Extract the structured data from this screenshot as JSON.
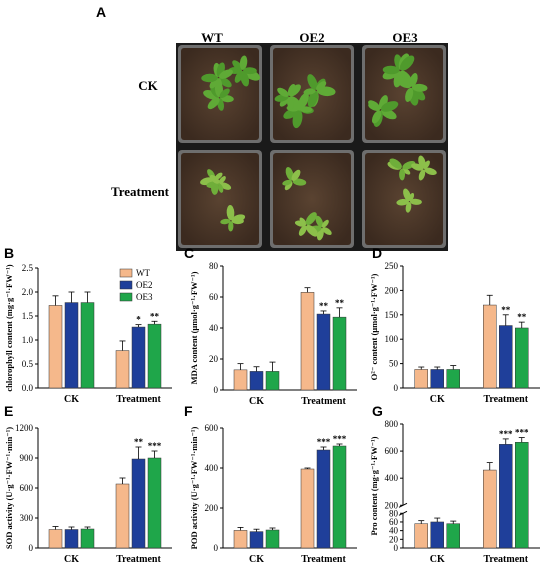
{
  "panel_a": {
    "letter": "A",
    "columns": [
      "WT",
      "OE2",
      "OE3"
    ],
    "rows": [
      "CK",
      "Treatment"
    ]
  },
  "legend": [
    "WT",
    "OE2",
    "OE3"
  ],
  "colors": {
    "WT": "#F5B88B",
    "OE2": "#1F3F9A",
    "OE3": "#1FA64A",
    "soil": "#4a3628",
    "plant": "#4f9a2c",
    "tray": "#1a1a1a"
  },
  "chart_data": [
    {
      "id": "B",
      "letter": "B",
      "type": "bar",
      "ylabel": "chlorophyll content (mg·g⁻¹·FW⁻¹)",
      "categories": [
        "CK",
        "Treatment"
      ],
      "ylim": [
        0,
        2.5
      ],
      "yticks": [
        "0.0",
        "0.5",
        "1.0",
        "1.5",
        "2.0",
        "2.5"
      ],
      "ytick_values": [
        0,
        0.5,
        1.0,
        1.5,
        2.0,
        2.5
      ],
      "series": [
        {
          "name": "WT",
          "values": [
            1.72,
            0.78
          ],
          "errors": [
            0.2,
            0.2
          ]
        },
        {
          "name": "OE2",
          "values": [
            1.78,
            1.27
          ],
          "errors": [
            0.22,
            0.05
          ]
        },
        {
          "name": "OE3",
          "values": [
            1.78,
            1.33
          ],
          "errors": [
            0.22,
            0.06
          ]
        }
      ],
      "annotations": [
        [
          "",
          ""
        ],
        [
          "",
          "*"
        ],
        [
          "",
          "**"
        ]
      ],
      "legend": "top-center"
    },
    {
      "id": "C",
      "letter": "C",
      "type": "bar",
      "ylabel": "MDA content (μmol·g⁻¹·FW⁻¹)",
      "categories": [
        "CK",
        "Treatment"
      ],
      "ylim": [
        0,
        80
      ],
      "yticks": [
        "0",
        "20",
        "40",
        "60",
        "80"
      ],
      "ytick_values": [
        0,
        20,
        40,
        60,
        80
      ],
      "series": [
        {
          "name": "WT",
          "values": [
            13,
            63
          ],
          "errors": [
            4,
            3
          ]
        },
        {
          "name": "OE2",
          "values": [
            12,
            49
          ],
          "errors": [
            3,
            2
          ]
        },
        {
          "name": "OE3",
          "values": [
            12,
            47
          ],
          "errors": [
            6,
            6
          ]
        }
      ],
      "annotations": [
        [
          "",
          ""
        ],
        [
          "",
          "**"
        ],
        [
          "",
          "**"
        ]
      ]
    },
    {
      "id": "D",
      "letter": "D",
      "type": "bar",
      "ylabel": "O²⁻ content (μmol·g⁻¹·FW⁻¹)",
      "categories": [
        "CK",
        "Treatment"
      ],
      "ylim": [
        0,
        250
      ],
      "yticks": [
        "0",
        "50",
        "100",
        "150",
        "200",
        "250"
      ],
      "ytick_values": [
        0,
        50,
        100,
        150,
        200,
        250
      ],
      "series": [
        {
          "name": "WT",
          "values": [
            38,
            170
          ],
          "errors": [
            5,
            20
          ]
        },
        {
          "name": "OE2",
          "values": [
            38,
            128
          ],
          "errors": [
            5,
            22
          ]
        },
        {
          "name": "OE3",
          "values": [
            38,
            123
          ],
          "errors": [
            8,
            12
          ]
        }
      ],
      "annotations": [
        [
          "",
          ""
        ],
        [
          "",
          "**"
        ],
        [
          "",
          "**"
        ]
      ]
    },
    {
      "id": "E",
      "letter": "E",
      "type": "bar",
      "ylabel": "SOD activity (U·g⁻¹·FW⁻¹·min⁻¹)",
      "categories": [
        "CK",
        "Treatment"
      ],
      "ylim": [
        0,
        1200
      ],
      "yticks": [
        "0",
        "300",
        "600",
        "900",
        "1200"
      ],
      "ytick_values": [
        0,
        300,
        600,
        900,
        1200
      ],
      "series": [
        {
          "name": "WT",
          "values": [
            185,
            640
          ],
          "errors": [
            30,
            60
          ]
        },
        {
          "name": "OE2",
          "values": [
            185,
            890
          ],
          "errors": [
            25,
            120
          ]
        },
        {
          "name": "OE3",
          "values": [
            190,
            900
          ],
          "errors": [
            20,
            70
          ]
        }
      ],
      "annotations": [
        [
          "",
          ""
        ],
        [
          "",
          "**"
        ],
        [
          "",
          "***"
        ]
      ]
    },
    {
      "id": "F",
      "letter": "F",
      "type": "bar",
      "ylabel": "POD activity (U·g⁻¹·FW⁻¹·min⁻¹)",
      "categories": [
        "CK",
        "Treatment"
      ],
      "ylim": [
        0,
        600
      ],
      "yticks": [
        "0",
        "200",
        "400",
        "600"
      ],
      "ytick_values": [
        0,
        200,
        400,
        600
      ],
      "series": [
        {
          "name": "WT",
          "values": [
            88,
            395
          ],
          "errors": [
            15,
            5
          ]
        },
        {
          "name": "OE2",
          "values": [
            82,
            490
          ],
          "errors": [
            12,
            15
          ]
        },
        {
          "name": "OE3",
          "values": [
            90,
            510
          ],
          "errors": [
            10,
            10
          ]
        }
      ],
      "annotations": [
        [
          "",
          ""
        ],
        [
          "",
          "***"
        ],
        [
          "",
          "***"
        ]
      ]
    },
    {
      "id": "G",
      "letter": "G",
      "type": "bar",
      "ylabel": "Pro content (mg·g⁻¹·FW⁻¹)",
      "categories": [
        "CK",
        "Treatment"
      ],
      "yticks": [
        "0",
        "20",
        "40",
        "60",
        "80",
        "200",
        "400",
        "600",
        "800"
      ],
      "ytick_values": [
        0,
        20,
        40,
        60,
        80,
        200,
        400,
        600,
        800
      ],
      "axis_break": [
        80,
        200
      ],
      "series": [
        {
          "name": "WT",
          "values": [
            56,
            460
          ],
          "errors": [
            7,
            55
          ]
        },
        {
          "name": "OE2",
          "values": [
            60,
            650
          ],
          "errors": [
            9,
            40
          ]
        },
        {
          "name": "OE3",
          "values": [
            56,
            665
          ],
          "errors": [
            6,
            35
          ]
        }
      ],
      "annotations": [
        [
          "",
          ""
        ],
        [
          "",
          "***"
        ],
        [
          "",
          "***"
        ]
      ]
    }
  ]
}
